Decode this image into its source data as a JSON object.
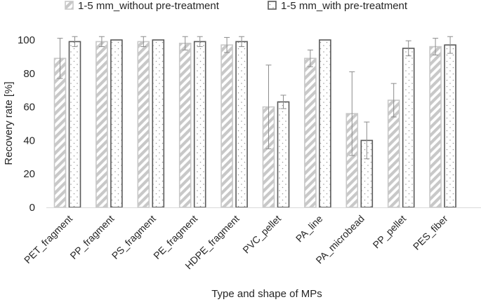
{
  "chart_data": {
    "type": "bar",
    "title": "",
    "xlabel": "Type and shape of MPs",
    "ylabel": "Recovery rate [%]",
    "ylim": [
      0,
      100
    ],
    "yticks": [
      0,
      20,
      40,
      60,
      80,
      100
    ],
    "grid": false,
    "legend_position": "top",
    "categories": [
      "PET_fragment",
      "PP_fragment",
      "PS_fragment",
      "PE_fragment",
      "HDPE_fragment",
      "PVC_pellet",
      "PA_line",
      "PA_microbead",
      "PP_pellet",
      "PES_fiber"
    ],
    "series": [
      {
        "name": "1-5 mm_without pre-treatment",
        "values": [
          89,
          99,
          99,
          98,
          97,
          60,
          89,
          56,
          64,
          96
        ],
        "error": [
          12,
          3,
          3,
          4,
          4.5,
          25,
          5,
          25,
          10,
          5
        ],
        "color": "#c8c8c8",
        "pattern": "diagonal-stripes"
      },
      {
        "name": "1-5 mm_with pre-treatment",
        "values": [
          99,
          100,
          100,
          99,
          99,
          63,
          100,
          40,
          95,
          97
        ],
        "error": [
          3,
          0,
          0,
          3,
          3,
          4,
          0,
          11,
          4.5,
          5
        ],
        "color": "#595959",
        "pattern": "dots"
      }
    ]
  }
}
